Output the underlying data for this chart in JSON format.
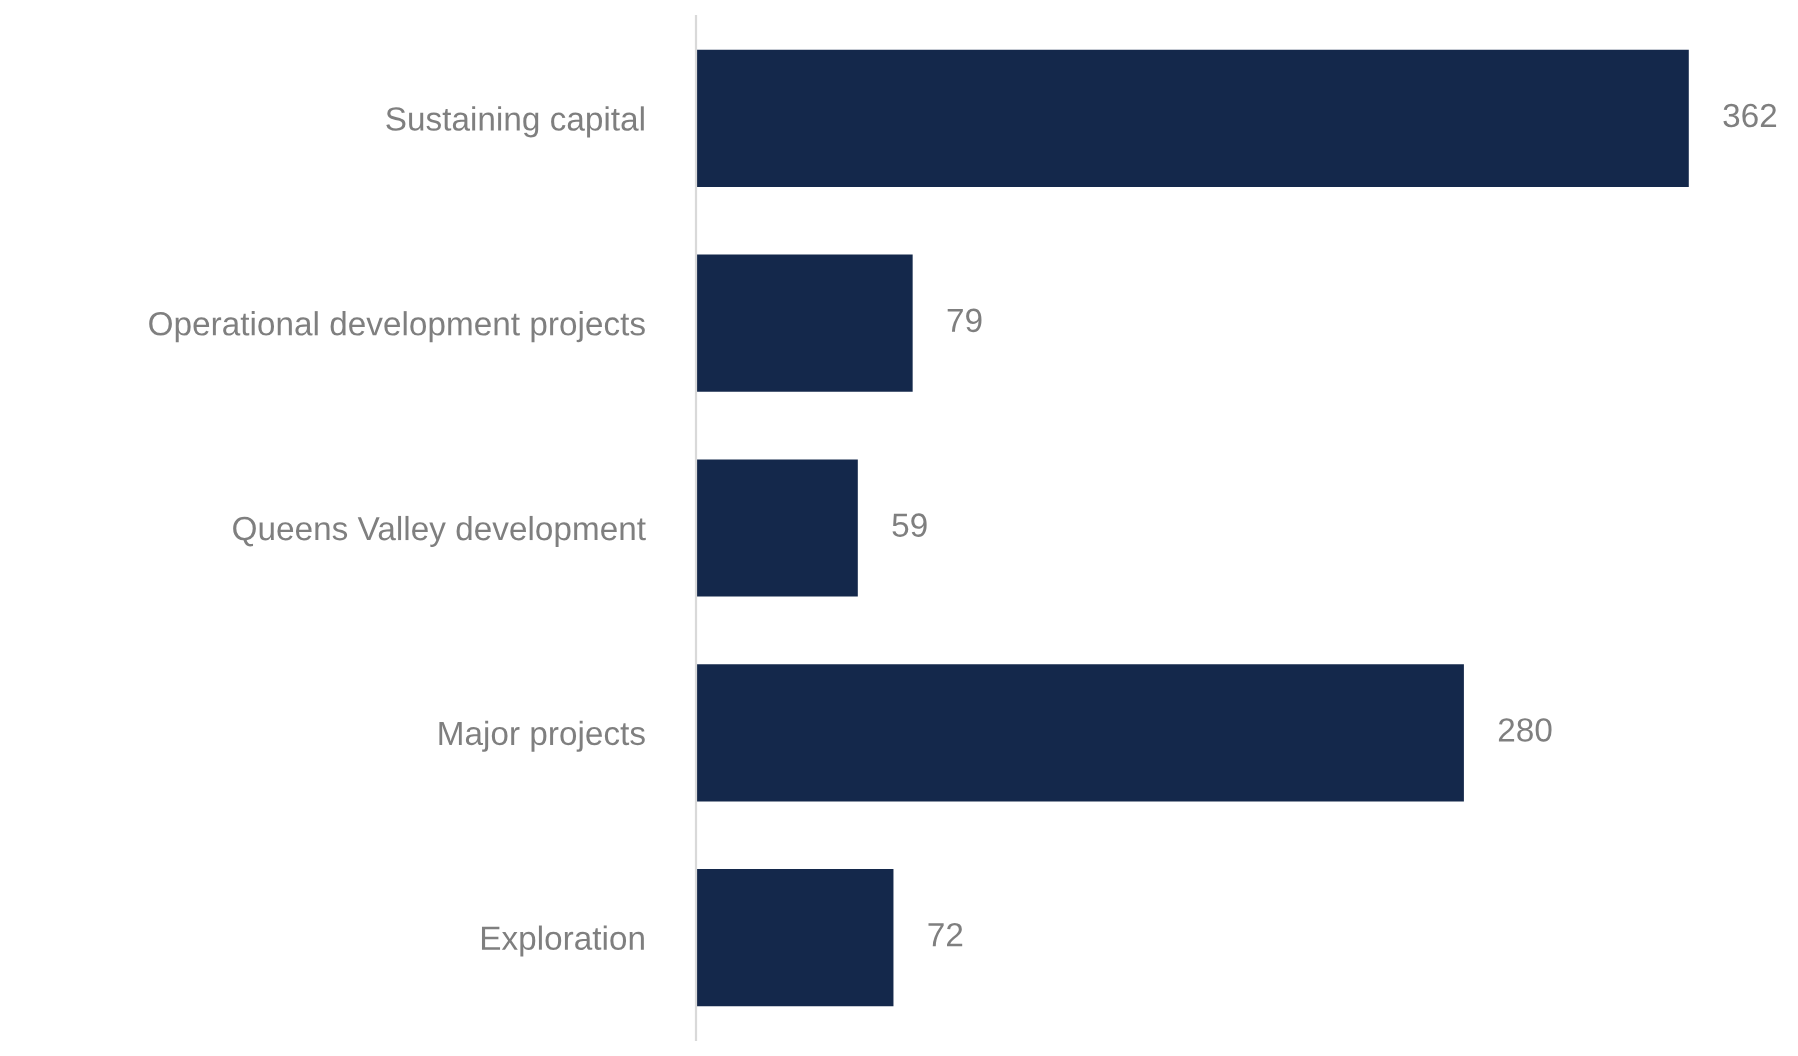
{
  "chart_data": {
    "type": "bar",
    "orientation": "horizontal",
    "categories": [
      "Sustaining capital",
      "Operational development projects",
      "Queens Valley development",
      "Major projects",
      "Exploration"
    ],
    "values": [
      362,
      79,
      59,
      280,
      72
    ],
    "color": "#14284b",
    "data_labels": true,
    "grid": false,
    "legend": false
  }
}
